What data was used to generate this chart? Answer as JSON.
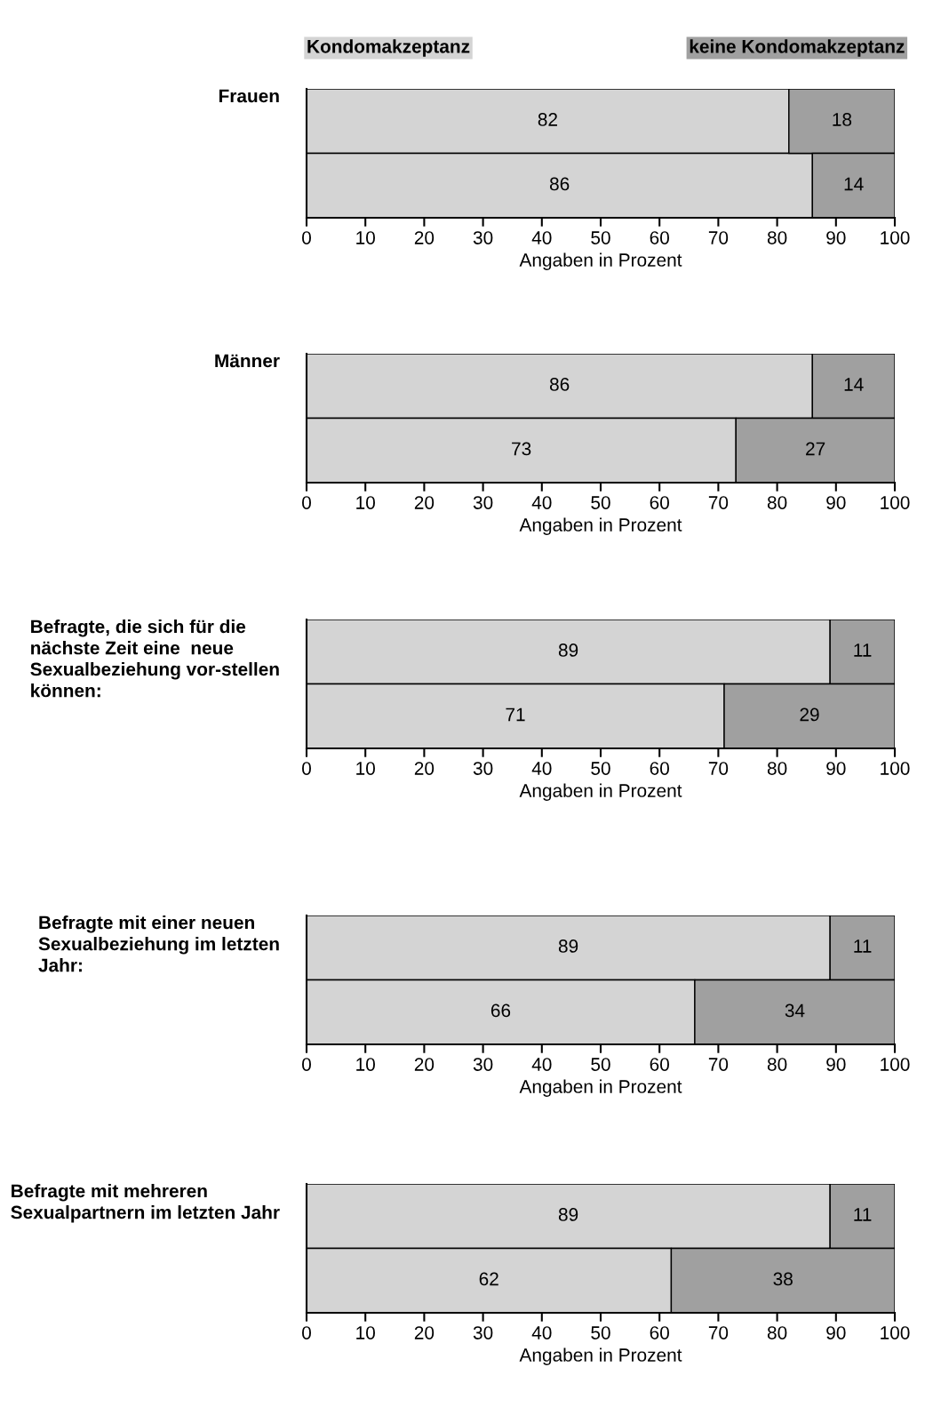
{
  "chart_data": [
    {
      "type": "bar",
      "orientation": "horizontal",
      "stacked": true,
      "title": "Frauen",
      "xlabel": "Angaben in Prozent",
      "categories": [
        null,
        null
      ],
      "xlim": [
        0,
        100
      ],
      "xticks": [
        0,
        10,
        20,
        30,
        40,
        50,
        60,
        70,
        80,
        90,
        100
      ],
      "data_labels": true,
      "legend": false,
      "grid": false,
      "series": [
        {
          "name": "Kondomakzeptanz",
          "color": "#d4d4d4",
          "values": [
            82,
            86
          ]
        },
        {
          "name": "keine Kondomakzeptanz",
          "color": "#a0a0a0",
          "values": [
            18,
            14
          ]
        }
      ]
    },
    {
      "type": "bar",
      "orientation": "horizontal",
      "stacked": true,
      "title": "Männer",
      "xlabel": "Angaben in Prozent",
      "categories": [
        null,
        null
      ],
      "xlim": [
        0,
        100
      ],
      "xticks": [
        0,
        10,
        20,
        30,
        40,
        50,
        60,
        70,
        80,
        90,
        100
      ],
      "data_labels": true,
      "legend": false,
      "grid": false,
      "series": [
        {
          "color": "#d4d4d4",
          "values": [
            86,
            73
          ]
        },
        {
          "color": "#a0a0a0",
          "values": [
            14,
            27
          ]
        }
      ]
    },
    {
      "type": "bar",
      "orientation": "horizontal",
      "stacked": true,
      "title": "Befragte, die sich für die nächste Zeit eine  neue Sexualbeziehung vor-stellen können:",
      "xlabel": "Angaben in Prozent",
      "categories": [
        null,
        null
      ],
      "xlim": [
        0,
        100
      ],
      "xticks": [
        0,
        10,
        20,
        30,
        40,
        50,
        60,
        70,
        80,
        90,
        100
      ],
      "data_labels": true,
      "legend": false,
      "grid": false,
      "series": [
        {
          "color": "#d4d4d4",
          "values": [
            89,
            71
          ]
        },
        {
          "color": "#a0a0a0",
          "values": [
            11,
            29
          ]
        }
      ]
    },
    {
      "type": "bar",
      "orientation": "horizontal",
      "stacked": true,
      "title": "Befragte mit einer neuen Sexualbeziehung im letzten Jahr:",
      "xlabel": "Angaben in Prozent",
      "categories": [
        null,
        null
      ],
      "xlim": [
        0,
        100
      ],
      "xticks": [
        0,
        10,
        20,
        30,
        40,
        50,
        60,
        70,
        80,
        90,
        100
      ],
      "data_labels": true,
      "legend": false,
      "grid": false,
      "series": [
        {
          "color": "#d4d4d4",
          "values": [
            89,
            66
          ]
        },
        {
          "color": "#a0a0a0",
          "values": [
            11,
            34
          ]
        }
      ]
    },
    {
      "type": "bar",
      "orientation": "horizontal",
      "stacked": true,
      "title": "Befragte mit mehreren Sexualpartnern im letzten Jahr",
      "xlabel": "Angaben in Prozent",
      "categories": [
        null,
        null
      ],
      "xlim": [
        0,
        100
      ],
      "xticks": [
        0,
        10,
        20,
        30,
        40,
        50,
        60,
        70,
        80,
        90,
        100
      ],
      "data_labels": true,
      "legend": false,
      "grid": false,
      "series": [
        {
          "color": "#d4d4d4",
          "values": [
            89,
            62
          ]
        },
        {
          "color": "#a0a0a0",
          "values": [
            11,
            38
          ]
        }
      ]
    }
  ]
}
